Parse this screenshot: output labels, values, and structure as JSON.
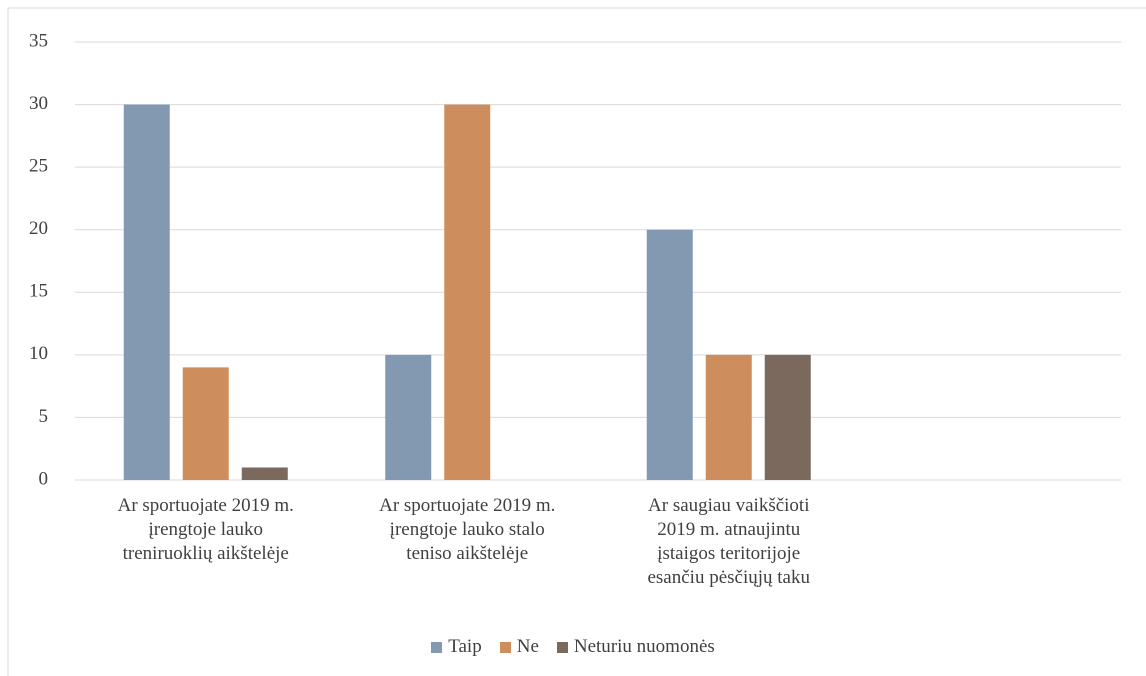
{
  "chart_data": {
    "type": "bar",
    "categories": [
      "Ar sportuojate 2019 m.\nįrengtoje lauko\ntreniruoklių aikštelėje",
      "Ar sportuojate 2019 m.\nįrengtoje lauko stalo\nteniso aikštelėje",
      "Ar saugiau vaikščioti\n2019 m. atnaujintu\nįstaigos teritorijoje\nesančiu pėsčiųjų taku",
      null
    ],
    "series": [
      {
        "name": "Taip",
        "color": "#8299b1",
        "values": [
          30,
          10,
          20,
          null
        ]
      },
      {
        "name": "Ne",
        "color": "#cd8d5c",
        "values": [
          9,
          30,
          10,
          null
        ]
      },
      {
        "name": "Neturiu nuomonės",
        "color": "#7b695d",
        "values": [
          1,
          0,
          10,
          null
        ]
      }
    ],
    "ylim": [
      0,
      35
    ],
    "yticks": [
      0,
      5,
      10,
      15,
      20,
      25,
      30,
      35
    ],
    "grid": true,
    "legend": "bottom"
  }
}
